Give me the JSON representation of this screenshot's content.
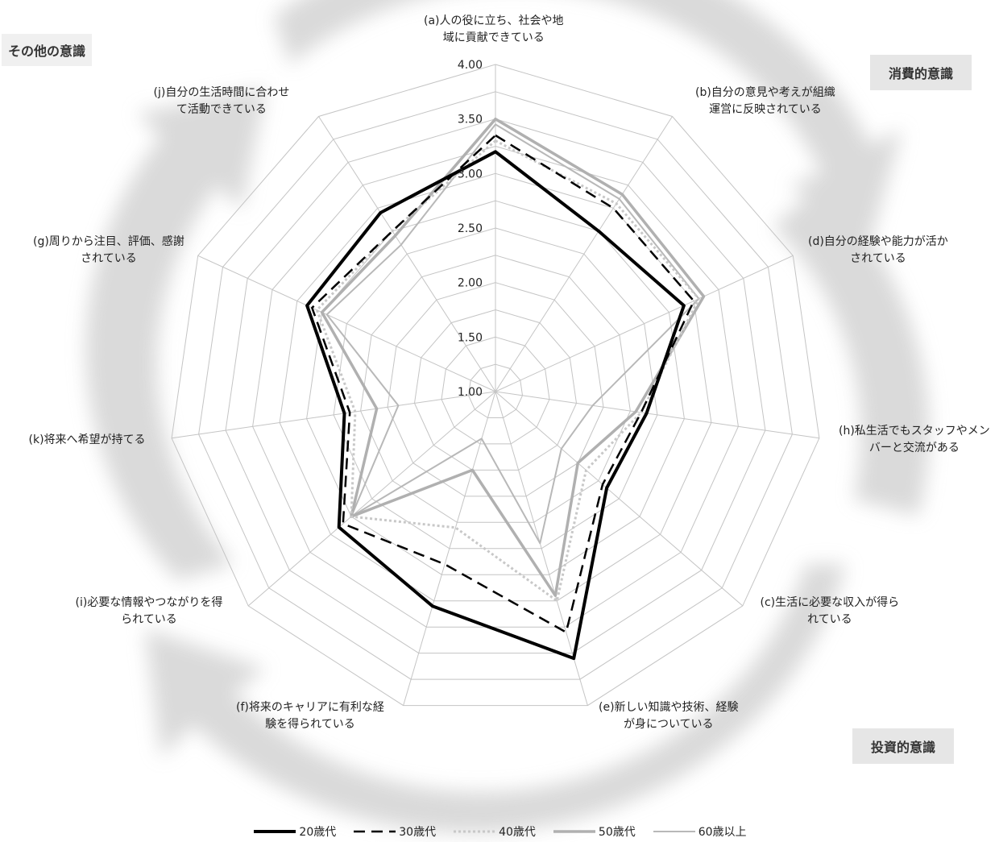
{
  "badges": {
    "other": "その他の意識",
    "consumption": "消費的意識",
    "investment": "投資的意識"
  },
  "chart_data": {
    "type": "radar",
    "axes": [
      {
        "key": "a",
        "label_lines": [
          "(a)人の役に立ち、社会や地",
          "域に貢献できている"
        ]
      },
      {
        "key": "b",
        "label_lines": [
          "(b)自分の意見や考えが組織",
          "運営に反映されている"
        ]
      },
      {
        "key": "d",
        "label_lines": [
          "(d)自分の経験や能力が活か",
          "されている"
        ]
      },
      {
        "key": "h",
        "label_lines": [
          "(h)私生活でもスタッフやメン",
          "バーと交流がある"
        ]
      },
      {
        "key": "c",
        "label_lines": [
          "(c)生活に必要な収入が得ら",
          "れている"
        ]
      },
      {
        "key": "e",
        "label_lines": [
          "(e)新しい知識や技術、経験",
          "が身についている"
        ]
      },
      {
        "key": "f",
        "label_lines": [
          "(f)将来のキャリアに有利な経",
          "験を得られている"
        ]
      },
      {
        "key": "i",
        "label_lines": [
          "(i)必要な情報やつながりを得",
          "られている"
        ]
      },
      {
        "key": "k",
        "label_lines": [
          "(k)将来へ希望が持てる"
        ]
      },
      {
        "key": "g",
        "label_lines": [
          "(g)周りから注目、評価、感謝",
          "されている"
        ]
      },
      {
        "key": "j",
        "label_lines": [
          "(j)自分の生活時間に合わせ",
          "て活動できている"
        ]
      }
    ],
    "r_ticks": [
      "1.00",
      "1.50",
      "2.00",
      "2.50",
      "3.00",
      "3.50",
      "4.00"
    ],
    "r_range": [
      1.0,
      4.0
    ],
    "series": [
      {
        "name": "20歳代",
        "color": "#000000",
        "dash": "solid",
        "values": [
          3.2,
          2.75,
          2.9,
          2.4,
          2.35,
          3.55,
          3.05,
          2.9,
          2.4,
          2.9,
          2.95
        ]
      },
      {
        "name": "30歳代",
        "color": "#000000",
        "dash": "dashed",
        "values": [
          3.35,
          3.0,
          3.0,
          2.35,
          2.3,
          3.3,
          2.65,
          2.85,
          2.35,
          2.85,
          2.75
        ]
      },
      {
        "name": "40歳代",
        "color": "#b0b0b0",
        "dash": "dotted",
        "values": [
          3.3,
          3.05,
          3.05,
          2.35,
          2.1,
          3.0,
          2.3,
          2.75,
          2.3,
          2.8,
          2.75
        ]
      },
      {
        "name": "50歳代",
        "color": "#b0b0b0",
        "dash": "solid-thick",
        "values": [
          3.5,
          3.15,
          3.1,
          2.3,
          2.0,
          2.95,
          1.75,
          2.75,
          2.1,
          2.75,
          2.7
        ]
      },
      {
        "name": "60歳以上",
        "color": "#b8b8b8",
        "dash": "solid",
        "values": [
          3.45,
          3.1,
          3.05,
          1.9,
          1.8,
          2.45,
          1.45,
          2.75,
          1.9,
          2.7,
          2.6
        ]
      }
    ]
  }
}
